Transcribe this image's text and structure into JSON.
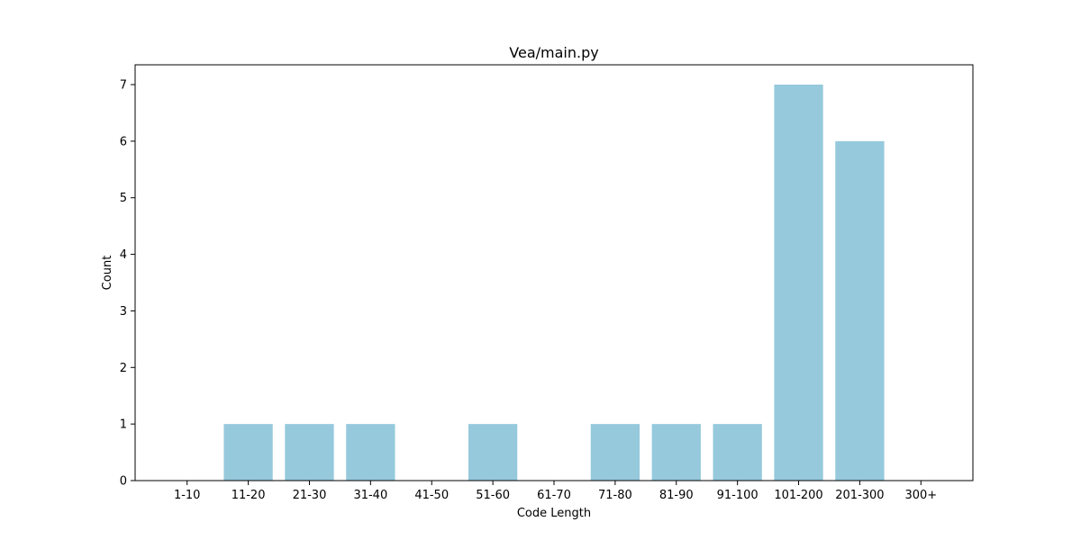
{
  "chart_data": {
    "type": "bar",
    "title": "Vea/main.py",
    "xlabel": "Code Length",
    "ylabel": "Count",
    "categories": [
      "1-10",
      "11-20",
      "21-30",
      "31-40",
      "41-50",
      "51-60",
      "61-70",
      "71-80",
      "81-90",
      "91-100",
      "101-200",
      "201-300",
      "300+"
    ],
    "values": [
      0,
      1,
      1,
      1,
      0,
      1,
      0,
      1,
      1,
      1,
      7,
      6,
      0
    ],
    "ylim": [
      0,
      7.35
    ],
    "yticks": [
      0,
      1,
      2,
      3,
      4,
      5,
      6,
      7
    ],
    "grid": false,
    "legend": "none",
    "bar_color": "#96c9dc"
  }
}
